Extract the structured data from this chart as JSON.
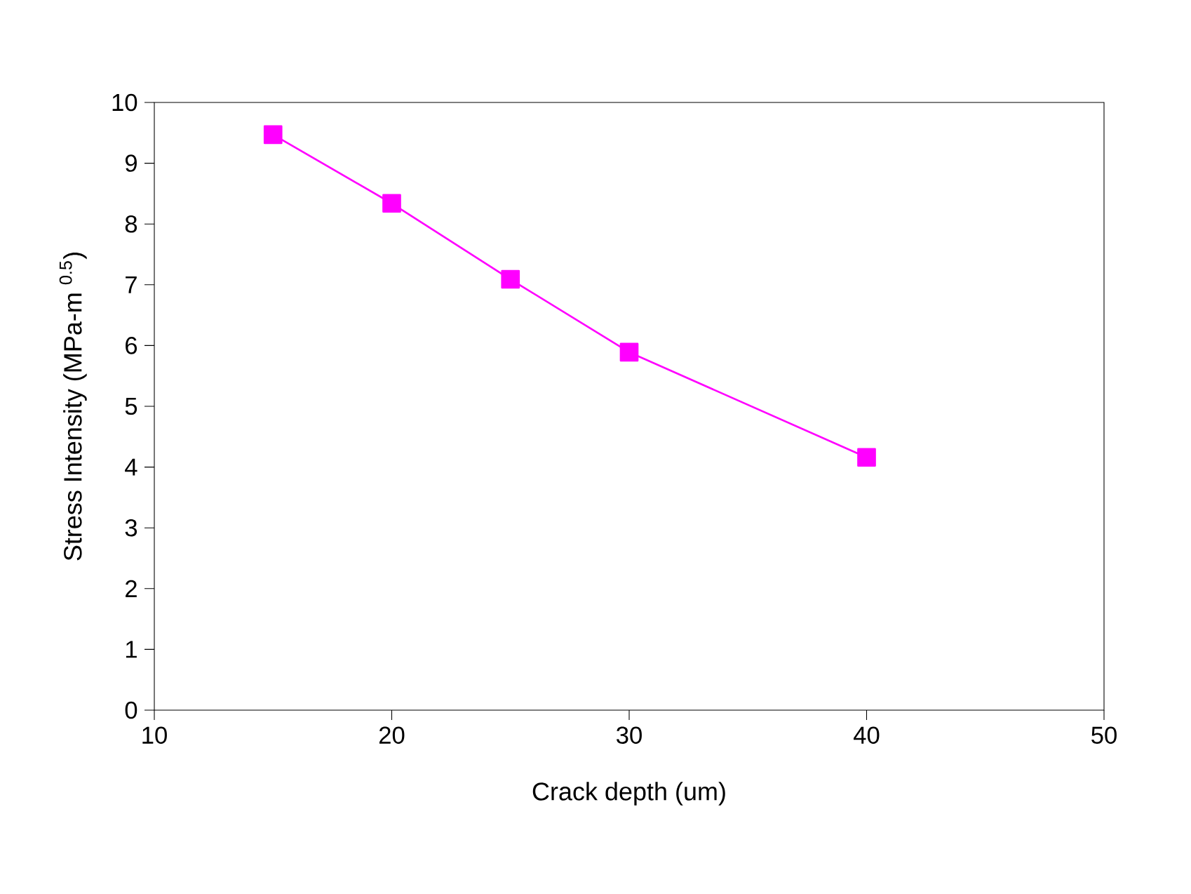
{
  "chart_data": {
    "type": "line",
    "xlabel": "Crack depth (um)",
    "ylabel": "Stress Intensity (MPa-m $^{0.5}$)",
    "x": [
      15,
      20,
      25,
      30,
      40
    ],
    "series": [
      {
        "color": "#ff00ff",
        "values": [
          9.47,
          8.34,
          7.09,
          5.89,
          4.16
        ]
      }
    ],
    "xlim": [
      10,
      50
    ],
    "xticks": [
      10,
      20,
      30,
      40,
      50
    ],
    "ylim": [
      0,
      10
    ],
    "yticks": [
      0,
      1,
      2,
      3,
      4,
      5,
      6,
      7,
      8,
      9,
      10
    ],
    "grid": false,
    "marker": "square",
    "line_style": "solid"
  }
}
